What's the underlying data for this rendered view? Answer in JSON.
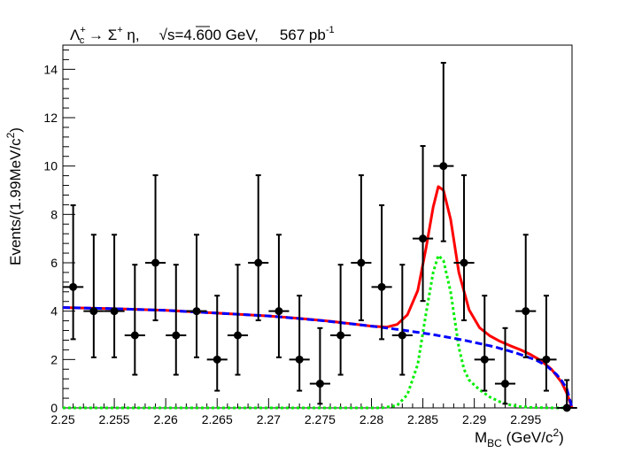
{
  "chart_data": {
    "type": "scatter",
    "title_parts": {
      "lambda": "Λ",
      "lambda_sup": "+",
      "lambda_sub": "c",
      "arrow": " → ",
      "sigma": "Σ",
      "sigma_sup": "+",
      "eta": " η,",
      "sqrt_symbol": "√",
      "sqrt_arg": "s",
      "energy": "=4.600 GeV,",
      "lumi": "567 pb",
      "lumi_sup": "-1"
    },
    "xlabel_main": "M",
    "xlabel_sub": "BC",
    "xlabel_units": " (GeV/c",
    "xlabel_units_sup": "2",
    "xlabel_close": ")",
    "ylabel_main": "Events/(1.99MeV/c",
    "ylabel_sup": "2",
    "ylabel_close": ")",
    "xlim": [
      2.25,
      2.2995
    ],
    "ylim": [
      0,
      15
    ],
    "x_tick_labels": [
      "2.25",
      "2.255",
      "2.26",
      "2.265",
      "2.27",
      "2.275",
      "2.28",
      "2.285",
      "2.29",
      "2.295"
    ],
    "x_ticks": [
      2.25,
      2.255,
      2.26,
      2.265,
      2.27,
      2.275,
      2.28,
      2.285,
      2.29,
      2.295
    ],
    "y_tick_labels": [
      "0",
      "2",
      "4",
      "6",
      "8",
      "10",
      "12",
      "14"
    ],
    "y_ticks": [
      0,
      2,
      4,
      6,
      8,
      10,
      12,
      14
    ],
    "data_points": {
      "x": [
        2.251,
        2.253,
        2.255,
        2.257,
        2.259,
        2.261,
        2.263,
        2.265,
        2.267,
        2.269,
        2.271,
        2.273,
        2.275,
        2.277,
        2.279,
        2.281,
        2.283,
        2.285,
        2.287,
        2.289,
        2.291,
        2.293,
        2.295,
        2.297,
        2.299
      ],
      "y": [
        5,
        4,
        4,
        3,
        6,
        3,
        4,
        2,
        3,
        6,
        4,
        2,
        1,
        3,
        6,
        5,
        3,
        7,
        10,
        6,
        2,
        1,
        4,
        2,
        0
      ],
      "y_err_low": [
        2.16,
        1.91,
        1.91,
        1.63,
        2.38,
        1.63,
        1.91,
        1.29,
        1.63,
        2.38,
        1.91,
        1.29,
        0.83,
        1.63,
        2.38,
        2.16,
        1.63,
        2.58,
        3.11,
        2.38,
        1.29,
        0.83,
        1.91,
        1.29,
        0
      ],
      "y_err_high": [
        3.38,
        3.16,
        3.16,
        2.92,
        3.62,
        2.92,
        3.16,
        2.64,
        2.92,
        3.62,
        3.16,
        2.64,
        2.3,
        2.92,
        3.62,
        3.38,
        2.92,
        3.83,
        4.27,
        3.62,
        2.64,
        2.3,
        3.16,
        2.64,
        1.15
      ],
      "x_half_width": 0.000995,
      "color": "#000000"
    },
    "series": [
      {
        "style": "solid",
        "color": "#ff0000",
        "x": [
          2.25,
          2.255,
          2.26,
          2.265,
          2.27,
          2.273,
          2.276,
          2.278,
          2.28,
          2.2815,
          2.2825,
          2.2835,
          2.2845,
          2.2853,
          2.286,
          2.2865,
          2.287,
          2.2877,
          2.2885,
          2.2895,
          2.2905,
          2.2915,
          2.2925,
          2.2935,
          2.2945,
          2.2955,
          2.2965,
          2.2975,
          2.2985,
          2.299,
          2.2995
        ],
        "y": [
          4.15,
          4.1,
          4.03,
          3.92,
          3.8,
          3.7,
          3.58,
          3.48,
          3.38,
          3.34,
          3.45,
          3.85,
          4.85,
          6.6,
          8.3,
          9.15,
          9.0,
          7.8,
          5.6,
          4.05,
          3.32,
          2.98,
          2.75,
          2.57,
          2.4,
          2.2,
          1.95,
          1.6,
          1.05,
          0.6,
          0.0
        ]
      },
      {
        "style": "dashed",
        "color": "#0000ff",
        "x": [
          2.25,
          2.255,
          2.26,
          2.265,
          2.27,
          2.275,
          2.28,
          2.283,
          2.286,
          2.289,
          2.292,
          2.294,
          2.296,
          2.297,
          2.298,
          2.2985,
          2.299,
          2.2995
        ],
        "y": [
          4.15,
          4.1,
          4.03,
          3.92,
          3.8,
          3.62,
          3.38,
          3.22,
          3.03,
          2.8,
          2.52,
          2.28,
          1.98,
          1.75,
          1.38,
          1.12,
          0.78,
          0.0
        ]
      },
      {
        "style": "dotted",
        "color": "#00ee00",
        "x": [
          2.25,
          2.278,
          2.281,
          2.2825,
          2.2835,
          2.2845,
          2.2853,
          2.286,
          2.2865,
          2.287,
          2.2877,
          2.2885,
          2.289,
          2.2895,
          2.2905,
          2.2915,
          2.2925,
          2.2935,
          2.2945,
          2.2955,
          2.2965,
          2.2975,
          2.2995
        ],
        "y": [
          0.0,
          0.0,
          0.0,
          0.1,
          0.55,
          1.8,
          3.9,
          5.6,
          6.3,
          6.1,
          4.8,
          2.5,
          1.6,
          1.15,
          0.75,
          0.45,
          0.25,
          0.12,
          0.05,
          0.02,
          0.01,
          0.0,
          0.0
        ]
      }
    ],
    "grid": false,
    "legend": "none"
  }
}
